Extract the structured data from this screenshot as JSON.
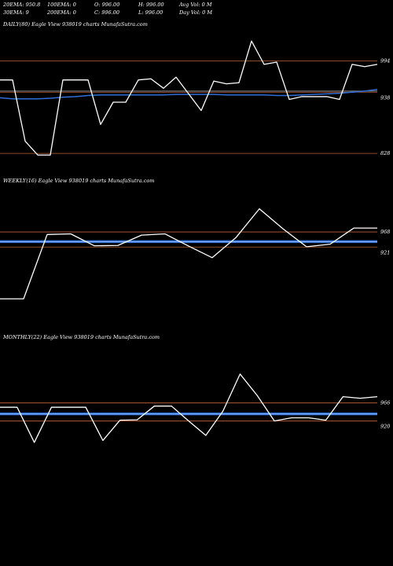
{
  "header": {
    "ema20": "20EMA: 950.8",
    "ema30": "30EMA: 9",
    "ema100": "100EMA: 0",
    "ema200": "200EMA: 0",
    "open": "O: 996.00",
    "close": "C: 996.00",
    "high": "H: 996.00",
    "low": "L: 996.00",
    "avg_vol": "Avg Vol: 0  M",
    "day_vol": "Day Vol: 0  M"
  },
  "colors": {
    "background": "#000000",
    "price_line": "#ffffff",
    "avg_line": "#2f6fd8",
    "level_line": "#c0603a",
    "mid_line": "#888888"
  },
  "chart_data": [
    {
      "type": "line",
      "title": "DAILY(80) Eagle   View  938019 charts MunafaSutra.com",
      "y_tick_labels": [
        "994",
        "938",
        "828"
      ],
      "ylim": [
        790,
        1050
      ],
      "levels": [
        994,
        938,
        828
      ],
      "values": [
        960,
        960,
        850,
        825,
        825,
        960,
        960,
        960,
        880,
        920,
        920,
        960,
        962,
        945,
        965,
        935,
        905,
        958,
        953,
        955,
        1030,
        988,
        992,
        925,
        930,
        930,
        930,
        925,
        988,
        984,
        988
      ],
      "avg_values": [
        928,
        926,
        926,
        926,
        927,
        929,
        930,
        932,
        933,
        933,
        933,
        933,
        933,
        933,
        934,
        934,
        934,
        934,
        933,
        933,
        933,
        933,
        932,
        932,
        933,
        934,
        935,
        936,
        938,
        940,
        943
      ],
      "avg2_values": [
        940,
        940,
        940,
        940,
        940,
        940,
        940,
        940,
        940,
        940,
        940,
        940,
        940,
        940,
        940,
        940,
        940,
        940,
        940,
        940,
        940,
        940,
        940,
        940,
        940,
        940,
        940,
        940,
        940,
        940,
        940
      ]
    },
    {
      "type": "line",
      "title": "WEEKLY(16) Eagle   View  938019 charts MunafaSutra.com",
      "y_tick_labels": [
        "968",
        "921"
      ],
      "ylim": [
        660,
        1110
      ],
      "levels": [
        968,
        921
      ],
      "values": [
        760,
        760,
        960,
        962,
        925,
        926,
        958,
        962,
        924,
        888,
        950,
        1040,
        978,
        922,
        930,
        980,
        980
      ],
      "avg_values": [
        938,
        938,
        938,
        938,
        938,
        938,
        938,
        938,
        938,
        938,
        938,
        938,
        938,
        938,
        938,
        938,
        938
      ]
    },
    {
      "type": "line",
      "title": "MONTHLY(22) Eagle   View  938019 charts MunafaSutra.com",
      "y_tick_labels": [
        "966",
        "920"
      ],
      "ylim": [
        750,
        1120
      ],
      "levels": [
        966,
        920
      ],
      "values": [
        955,
        955,
        865,
        955,
        955,
        955,
        870,
        922,
        923,
        958,
        958,
        920,
        883,
        945,
        1040,
        985,
        920,
        928,
        928,
        922,
        982,
        978,
        982
      ],
      "avg_values": [
        938,
        938,
        938,
        938,
        938,
        938,
        938,
        938,
        938,
        938,
        938,
        938,
        938,
        938,
        938,
        938,
        938,
        938,
        938,
        938,
        938,
        938,
        938
      ]
    }
  ]
}
